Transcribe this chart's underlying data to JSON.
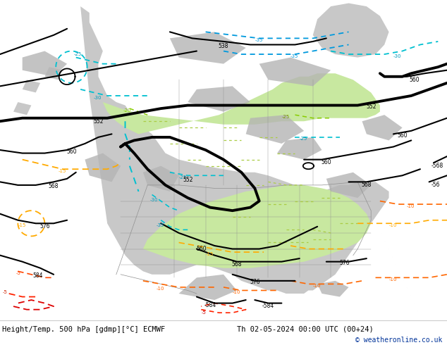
{
  "title_left": "Height/Temp. 500 hPa [gdmp][°C] ECMWF",
  "title_right": "Th 02-05-2024 00:00 UTC (00+24)",
  "copyright": "© weatheronline.co.uk",
  "bg_light_gray": "#e0e0e0",
  "land_gray": "#c8c8c8",
  "green_fill": "#c8e8a0",
  "footer_bg": "#ffffff",
  "copyright_color": "#003399",
  "figsize": [
    6.34,
    4.9
  ],
  "dpi": 100,
  "map_bg": "#e8e8e8",
  "ocean_color": "#d8d8d8"
}
